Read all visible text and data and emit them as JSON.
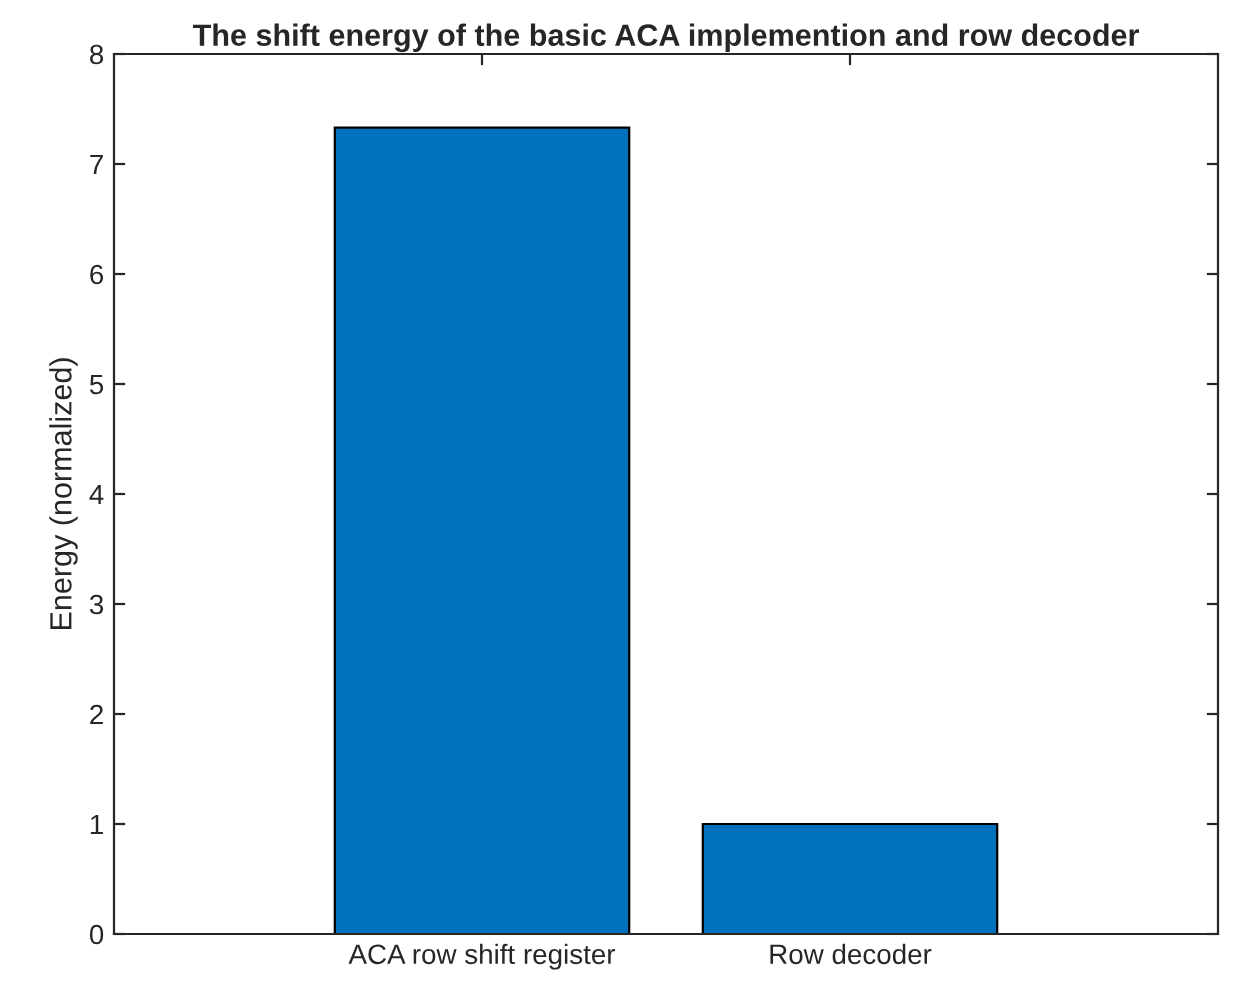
{
  "chart_data": {
    "type": "bar",
    "title": "The shift energy of the basic ACA implemention and row decoder",
    "ylabel": "Energy (normalized)",
    "categories": [
      "ACA row shift register",
      "Row decoder"
    ],
    "values": [
      7.33,
      1.0
    ],
    "color": "#0072bd",
    "ylim": [
      0,
      8
    ],
    "yticks": [
      0,
      1,
      2,
      3,
      4,
      5,
      6,
      7,
      8
    ],
    "grid": false
  }
}
